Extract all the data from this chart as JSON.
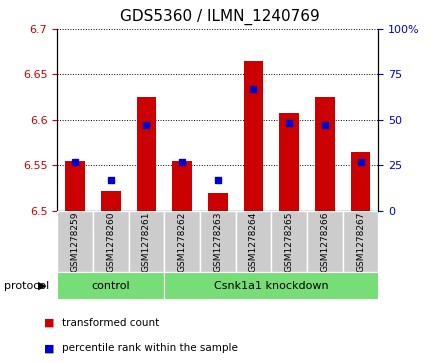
{
  "title": "GDS5360 / ILMN_1240769",
  "samples": [
    "GSM1278259",
    "GSM1278260",
    "GSM1278261",
    "GSM1278262",
    "GSM1278263",
    "GSM1278264",
    "GSM1278265",
    "GSM1278266",
    "GSM1278267"
  ],
  "red_values": [
    6.555,
    6.521,
    6.625,
    6.555,
    6.519,
    6.665,
    6.608,
    6.625,
    6.565
  ],
  "blue_percentiles": [
    27,
    17,
    47,
    27,
    17,
    67,
    48,
    47,
    27
  ],
  "ylim_left": [
    6.5,
    6.7
  ],
  "ylim_right": [
    0,
    100
  ],
  "yticks_left": [
    6.5,
    6.55,
    6.6,
    6.65,
    6.7
  ],
  "yticks_right": [
    0,
    25,
    50,
    75,
    100
  ],
  "control_count": 3,
  "knockdown_count": 6,
  "control_label": "control",
  "knockdown_label": "Csnk1a1 knockdown",
  "protocol_label": "protocol",
  "legend_red": "transformed count",
  "legend_blue": "percentile rank within the sample",
  "bar_color": "#cc0000",
  "blue_color": "#0000cc",
  "green_color": "#77dd77",
  "bg_color": "#cccccc",
  "title_fontsize": 11,
  "tick_fontsize": 8,
  "label_fontsize": 8
}
